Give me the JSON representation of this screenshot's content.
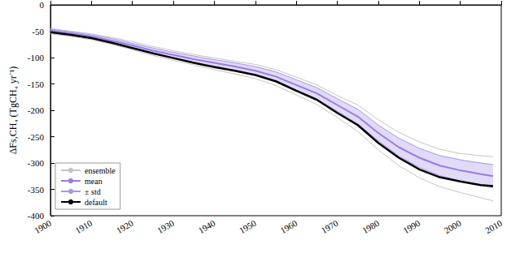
{
  "chart_data": {
    "type": "line",
    "y_label": "ΔFs,CH₄ (TgCH₄ yr⁻¹)",
    "x": [
      1900,
      1905,
      1910,
      1915,
      1920,
      1925,
      1930,
      1935,
      1940,
      1945,
      1950,
      1955,
      1960,
      1965,
      1970,
      1975,
      1980,
      1985,
      1990,
      1995,
      2000,
      2005,
      2008
    ],
    "xlim": [
      1900,
      2010
    ],
    "xticks": [
      1900,
      1910,
      1920,
      1930,
      1940,
      1950,
      1960,
      1970,
      1980,
      1990,
      2000,
      2010
    ],
    "ylim": [
      -400,
      0
    ],
    "yticks": [
      -400,
      -350,
      -300,
      -250,
      -200,
      -150,
      -100,
      -50,
      0
    ],
    "grid": false,
    "legend": "lower left",
    "series": [
      {
        "name": "ensemble",
        "color": "#c4c4c4",
        "members": [
          [
            -45,
            -50,
            -55,
            -62,
            -70,
            -79,
            -87,
            -94,
            -101,
            -107,
            -113,
            -123,
            -137,
            -152,
            -172,
            -190,
            -218,
            -242,
            -260,
            -274,
            -282,
            -286,
            -288
          ],
          [
            -55,
            -60,
            -66,
            -75,
            -85,
            -96,
            -105,
            -114,
            -123,
            -131,
            -140,
            -153,
            -171,
            -189,
            -214,
            -240,
            -275,
            -305,
            -328,
            -345,
            -356,
            -366,
            -372
          ]
        ]
      },
      {
        "name": "mean",
        "color": "#9a7ae6",
        "values": [
          -49,
          -54,
          -60,
          -68,
          -77,
          -87,
          -95,
          -103,
          -110,
          -117,
          -125,
          -136,
          -152,
          -168,
          -190,
          -212,
          -243,
          -270,
          -290,
          -305,
          -314,
          -321,
          -325
        ]
      },
      {
        "name": "± std",
        "color": "#a996ea",
        "upper": [
          -46,
          -51,
          -57,
          -64,
          -73,
          -82,
          -90,
          -97,
          -104,
          -110,
          -117,
          -127,
          -142,
          -157,
          -178,
          -198,
          -228,
          -253,
          -272,
          -286,
          -294,
          -300,
          -303
        ],
        "lower": [
          -52,
          -57,
          -63,
          -72,
          -81,
          -92,
          -100,
          -109,
          -116,
          -124,
          -133,
          -145,
          -162,
          -179,
          -202,
          -226,
          -258,
          -287,
          -308,
          -324,
          -334,
          -342,
          -347
        ]
      },
      {
        "name": "default",
        "color": "#000000",
        "values": [
          -52,
          -57,
          -63,
          -72,
          -82,
          -92,
          -101,
          -110,
          -118,
          -125,
          -133,
          -145,
          -163,
          -180,
          -205,
          -228,
          -262,
          -290,
          -312,
          -327,
          -335,
          -342,
          -344
        ]
      }
    ]
  }
}
